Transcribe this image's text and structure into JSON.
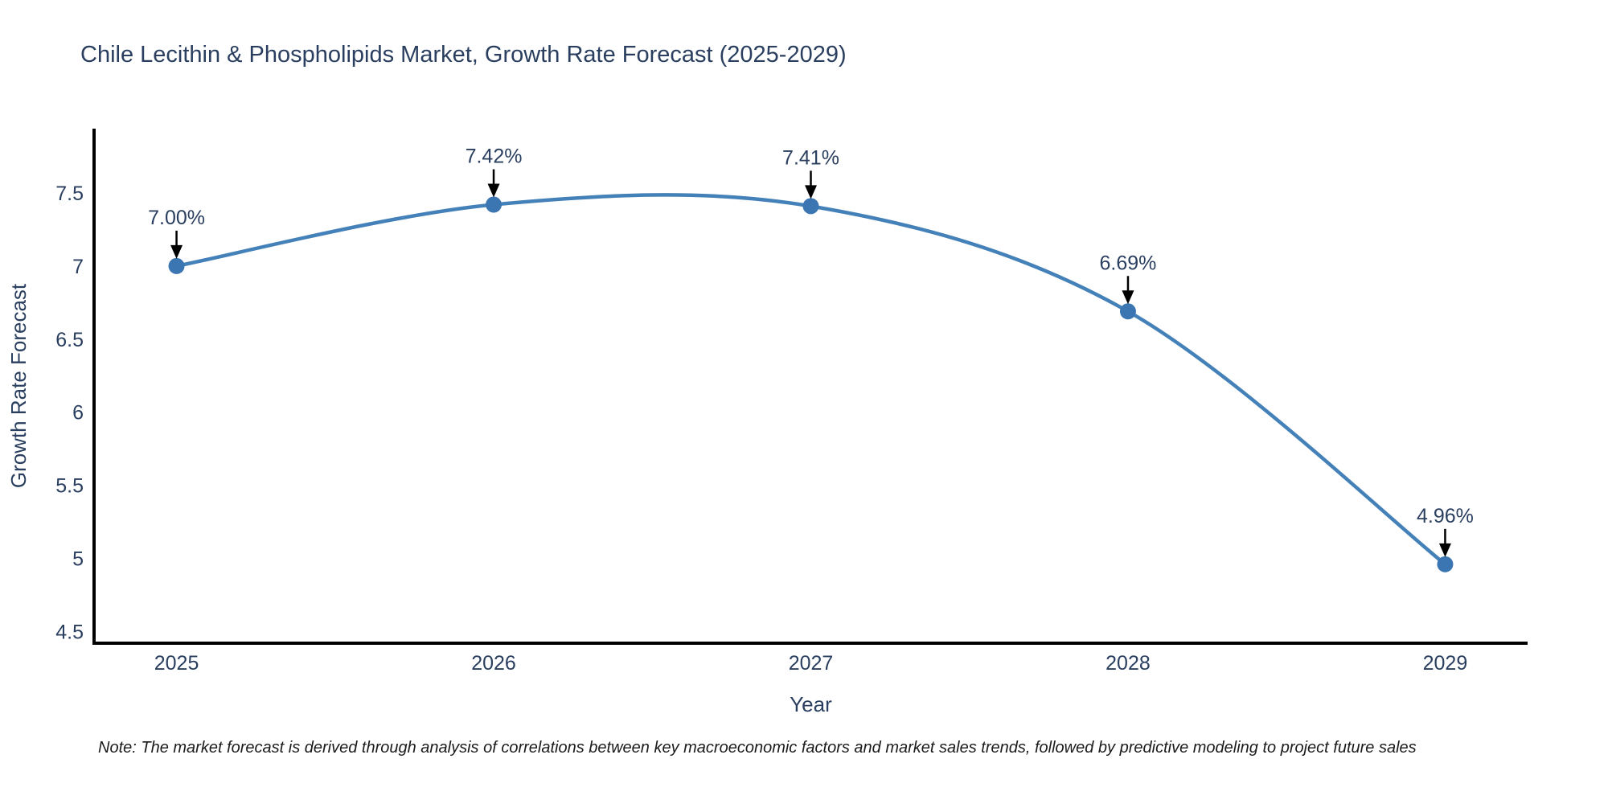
{
  "header": {
    "title": "Chile Lecithin & Phospholipids Market, Growth Rate Forecast (2025-2029)"
  },
  "footer": {
    "note": "Note: The market forecast is derived through analysis of correlations between key macroeconomic factors and market sales trends, followed by predictive modeling to project future sales"
  },
  "chart_data": {
    "type": "line",
    "line_shape": "spline",
    "title": "Chile Lecithin & Phospholipids Market, Growth Rate Forecast (2025-2029)",
    "xlabel": "Year",
    "ylabel": "Growth Rate Forecast",
    "x": [
      2025,
      2026,
      2027,
      2028,
      2029
    ],
    "values": [
      7.0,
      7.42,
      7.41,
      6.69,
      4.96
    ],
    "point_labels": [
      "7.00%",
      "7.42%",
      "7.41%",
      "6.69%",
      "4.96%"
    ],
    "x_tick_labels": [
      "2025",
      "2026",
      "2027",
      "2028",
      "2029"
    ],
    "y_tick_values": [
      7.5,
      7.0,
      6.5,
      6.0,
      5.5,
      5.0,
      4.5
    ],
    "y_tick_labels": [
      "7.5",
      "7",
      "6.5",
      "6",
      "5.5",
      "5",
      "4.5"
    ],
    "xlim": [
      2024.74,
      2029.26
    ],
    "ylim": [
      4.42,
      7.94
    ],
    "grid": false,
    "legend": "none",
    "markers": true,
    "annotations_have_arrows": true,
    "colors": {
      "line": "#4481b8",
      "marker": "#3b76b2",
      "axis": "#000000",
      "text": "#2a3f5f",
      "arrow": "#000000",
      "background": "#ffffff"
    }
  }
}
